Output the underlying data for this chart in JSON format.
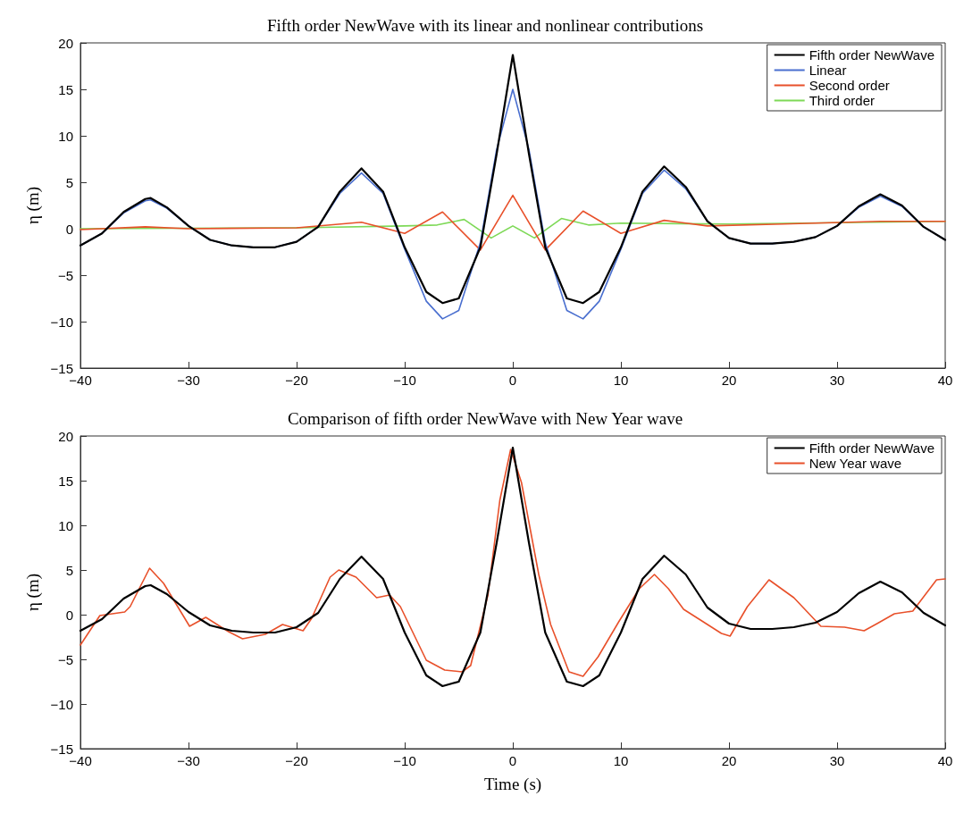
{
  "chart_data": [
    {
      "type": "line",
      "title": "Fifth order NewWave with its linear and nonlinear contributions",
      "ylabel": "η (m)",
      "xlim": [
        -40,
        40
      ],
      "xticks": [
        -40,
        -30,
        -20,
        -10,
        0,
        10,
        20,
        30,
        40
      ],
      "ylim": [
        -15,
        20
      ],
      "yticks": [
        -15,
        -10,
        -5,
        0,
        5,
        10,
        15,
        20
      ],
      "grid": false,
      "legend": "top right",
      "marker": "none",
      "line_style": "solid",
      "series": [
        {
          "name": "Fifth order NewWave",
          "color": "#000000",
          "x": [
            -40,
            -38,
            -36,
            -34,
            -33.5,
            -32,
            -30,
            -28,
            -26,
            -24,
            -22,
            -20,
            -18,
            -16,
            -14,
            -12,
            -10,
            -8,
            -6.5,
            -5,
            -3,
            -1.5,
            0,
            1.5,
            3,
            5,
            6.5,
            8,
            10,
            12,
            14,
            16,
            18,
            20,
            22,
            24,
            26,
            28,
            30,
            32,
            34,
            36,
            38,
            40
          ],
          "values": [
            -1.8,
            -0.5,
            1.8,
            3.2,
            3.3,
            2.3,
            0.3,
            -1.2,
            -1.8,
            -2.0,
            -2.0,
            -1.4,
            0.2,
            4.0,
            6.5,
            4.0,
            -2.0,
            -6.8,
            -8.0,
            -7.5,
            -2.0,
            8.0,
            18.7,
            8.0,
            -2.0,
            -7.5,
            -8.0,
            -6.8,
            -2.0,
            4.0,
            6.7,
            4.5,
            0.8,
            -1.0,
            -1.6,
            -1.6,
            -1.4,
            -0.9,
            0.3,
            2.4,
            3.7,
            2.5,
            0.2,
            -1.2
          ]
        },
        {
          "name": "Linear",
          "color": "#4a6fcf",
          "x": [
            -40,
            -38,
            -36,
            -34,
            -33.5,
            -32,
            -30,
            -28,
            -26,
            -24,
            -22,
            -20,
            -18,
            -16,
            -14,
            -12,
            -10,
            -8,
            -6.5,
            -5,
            -3,
            -1.5,
            0,
            1.5,
            3,
            5,
            6.5,
            8,
            10,
            12,
            14,
            16,
            18,
            20,
            22,
            24,
            26,
            28,
            30,
            32,
            34,
            36,
            38,
            40
          ],
          "values": [
            -1.8,
            -0.5,
            1.7,
            3.0,
            3.1,
            2.2,
            0.3,
            -1.2,
            -1.8,
            -2.0,
            -2.0,
            -1.4,
            0.2,
            3.8,
            6.0,
            3.8,
            -2.2,
            -7.8,
            -9.7,
            -8.8,
            -1.5,
            8.5,
            15.0,
            8.5,
            -1.5,
            -8.8,
            -9.7,
            -7.8,
            -2.2,
            3.8,
            6.3,
            4.3,
            0.8,
            -1.0,
            -1.6,
            -1.6,
            -1.4,
            -0.9,
            0.3,
            2.3,
            3.5,
            2.4,
            0.2,
            -1.2
          ]
        },
        {
          "name": "Second order",
          "color": "#e8502a",
          "x": [
            -40,
            -34,
            -30,
            -20,
            -14,
            -10,
            -6.5,
            -3,
            0,
            3,
            6.5,
            10,
            14,
            18,
            25,
            34,
            40
          ],
          "values": [
            -0.1,
            0.2,
            0.0,
            0.1,
            0.7,
            -0.5,
            1.8,
            -2.3,
            3.6,
            -2.3,
            1.9,
            -0.5,
            0.9,
            0.3,
            0.5,
            0.8,
            0.8
          ]
        },
        {
          "name": "Third order",
          "color": "#7ed957",
          "x": [
            -40,
            -20,
            -10,
            -7,
            -4.5,
            -2,
            0,
            2,
            4.5,
            7,
            10,
            20,
            40
          ],
          "values": [
            0.0,
            0.1,
            0.3,
            0.4,
            1.0,
            -1.0,
            0.3,
            -1.0,
            1.1,
            0.4,
            0.6,
            0.5,
            0.8
          ]
        }
      ]
    },
    {
      "type": "line",
      "title": "Comparison of fifth order NewWave with New Year wave",
      "xlabel": "Time (s)",
      "ylabel": "η (m)",
      "xlim": [
        -40,
        40
      ],
      "xticks": [
        -40,
        -30,
        -20,
        -10,
        0,
        10,
        20,
        30,
        40
      ],
      "ylim": [
        -15,
        20
      ],
      "yticks": [
        -15,
        -10,
        -5,
        0,
        5,
        10,
        15,
        20
      ],
      "grid": false,
      "legend": "top right",
      "marker": "none",
      "line_style": "solid",
      "series": [
        {
          "name": "Fifth order NewWave",
          "color": "#000000",
          "x": [
            -40,
            -38,
            -36,
            -34,
            -33.5,
            -32,
            -30,
            -28,
            -26,
            -24,
            -22,
            -20,
            -18,
            -16,
            -14,
            -12,
            -10,
            -8,
            -6.5,
            -5,
            -3,
            -1.5,
            0,
            1.5,
            3,
            5,
            6.5,
            8,
            10,
            12,
            14,
            16,
            18,
            20,
            22,
            24,
            26,
            28,
            30,
            32,
            34,
            36,
            38,
            40
          ],
          "values": [
            -1.8,
            -0.5,
            1.8,
            3.2,
            3.3,
            2.3,
            0.3,
            -1.2,
            -1.8,
            -2.0,
            -2.0,
            -1.4,
            0.2,
            4.0,
            6.5,
            4.0,
            -2.0,
            -6.8,
            -8.0,
            -7.5,
            -2.0,
            8.0,
            18.7,
            8.0,
            -2.0,
            -7.5,
            -8.0,
            -6.8,
            -2.0,
            4.0,
            6.6,
            4.5,
            0.8,
            -1.0,
            -1.6,
            -1.6,
            -1.4,
            -0.9,
            0.3,
            2.4,
            3.7,
            2.5,
            0.2,
            -1.2
          ]
        },
        {
          "name": "New Year wave",
          "color": "#e8502a",
          "x": [
            -40,
            -38.2,
            -35.9,
            -35.4,
            -33.6,
            -32.3,
            -29.9,
            -28.4,
            -26.3,
            -25.0,
            -22.9,
            -21.3,
            -19.4,
            -18.6,
            -16.9,
            -16.1,
            -14.5,
            -12.6,
            -11.4,
            -10.4,
            -8.0,
            -6.3,
            -4.7,
            -3.9,
            -2.3,
            -1.2,
            -0.2,
            0.8,
            2.4,
            3.5,
            5.2,
            6.5,
            7.9,
            9.8,
            11.7,
            13.1,
            14.4,
            15.8,
            17.1,
            19.3,
            20.1,
            21.7,
            23.7,
            26.0,
            28.5,
            30.7,
            32.5,
            33.7,
            35.3,
            37.0,
            39.2,
            40
          ],
          "values": [
            -3.4,
            -0.1,
            0.3,
            0.9,
            5.2,
            3.5,
            -1.3,
            -0.3,
            -1.9,
            -2.7,
            -2.2,
            -1.1,
            -1.8,
            -0.4,
            4.2,
            5.0,
            4.2,
            1.9,
            2.2,
            0.9,
            -5.1,
            -6.2,
            -6.4,
            -5.7,
            2.2,
            12.8,
            18.5,
            14.8,
            4.5,
            -1.1,
            -6.4,
            -6.9,
            -4.7,
            -0.8,
            2.9,
            4.5,
            2.9,
            0.6,
            -0.4,
            -2.1,
            -2.4,
            0.9,
            3.9,
            1.9,
            -1.3,
            -1.4,
            -1.8,
            -1.0,
            0.1,
            0.4,
            3.9,
            4.0
          ]
        }
      ]
    }
  ]
}
